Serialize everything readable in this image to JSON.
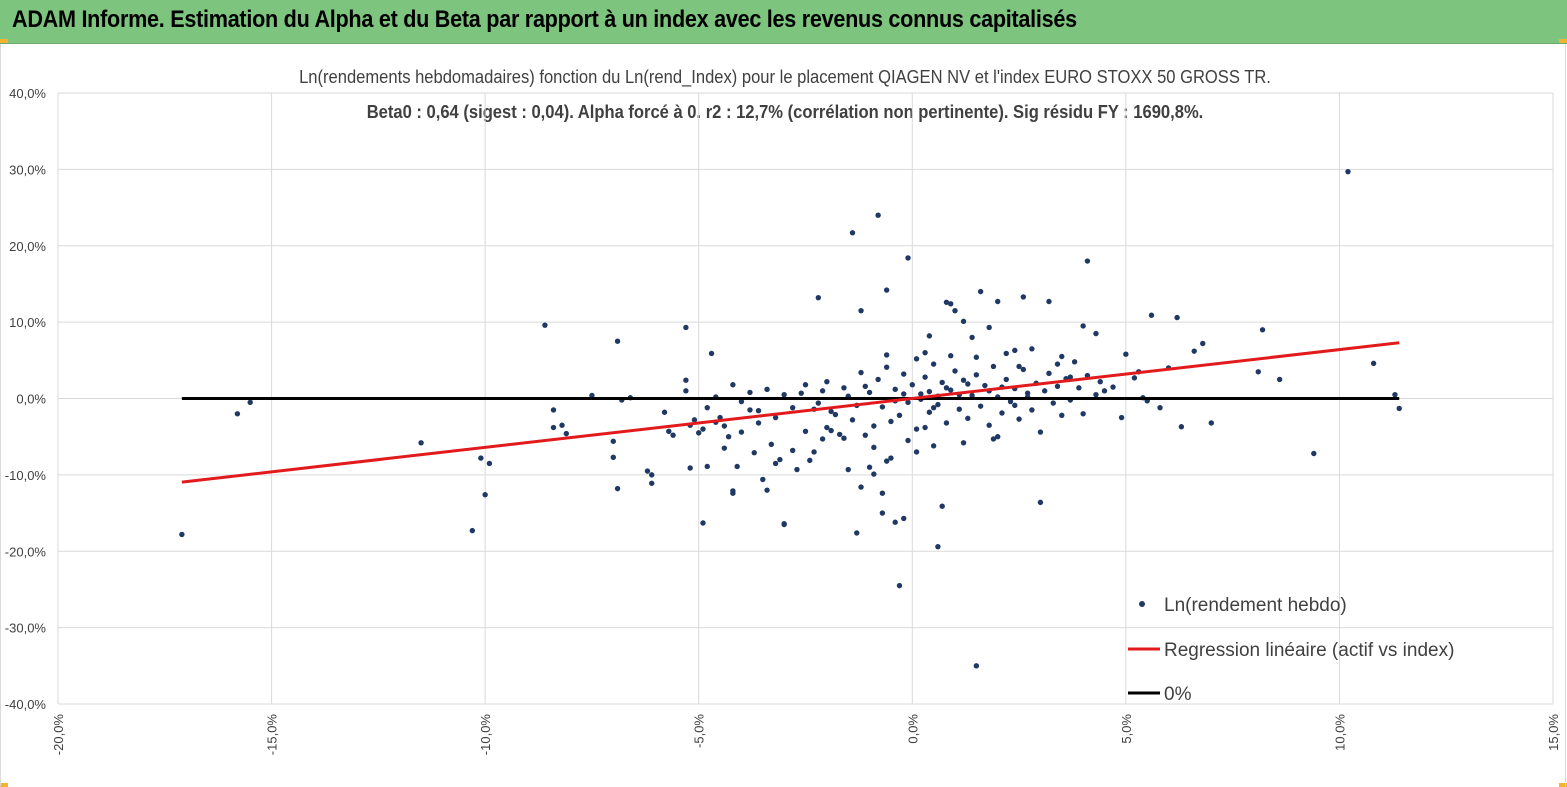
{
  "banner": {
    "title": "ADAM Informe. Estimation du Alpha et du Beta par rapport à un index avec les revenus connus capitalisés"
  },
  "colors": {
    "banner": "#7dc57e",
    "accent": "#f2b233",
    "points": "#1f3864",
    "regression": "#e31a1c",
    "zero_line": "#000000",
    "grid": "#d9d9d9"
  },
  "chart_data": {
    "type": "scatter",
    "title": "Ln(rendements hebdomadaires) fonction du Ln(rend_Index) pour le placement QIAGEN NV et l'index EURO STOXX 50 GROSS TR.",
    "subtitle": "Beta0 : 0,64 (sigest : 0,04).  Alpha forcé à 0. r2 : 12,7% (corrélation non pertinente). Sig résidu FY : 1690,8%.",
    "xlim": [
      -0.2,
      0.15
    ],
    "ylim": [
      -0.4,
      0.4
    ],
    "x_ticks": [
      "-20,0%",
      "-15,0%",
      "-10,0%",
      "-5,0%",
      "0,0%",
      "5,0%",
      "10,0%",
      "15,0%"
    ],
    "y_ticks": [
      "40,0%",
      "30,0%",
      "20,0%",
      "10,0%",
      "0,0%",
      "-10,0%",
      "-20,0%",
      "-30,0%",
      "-40,0%"
    ],
    "grid": true,
    "legend_position": "bottom-right",
    "series": [
      {
        "name": "Ln(rendement hebdo)",
        "kind": "scatter",
        "points": [
          [
            -0.171,
            -0.178
          ],
          [
            -0.158,
            -0.02
          ],
          [
            -0.155,
            -0.005
          ],
          [
            -0.115,
            -0.058
          ],
          [
            -0.103,
            -0.173
          ],
          [
            -0.101,
            -0.078
          ],
          [
            -0.1,
            -0.126
          ],
          [
            -0.099,
            -0.085
          ],
          [
            -0.086,
            0.096
          ],
          [
            -0.084,
            -0.015
          ],
          [
            -0.084,
            -0.038
          ],
          [
            -0.082,
            -0.035
          ],
          [
            -0.081,
            -0.046
          ],
          [
            -0.075,
            0.004
          ],
          [
            -0.07,
            -0.077
          ],
          [
            -0.07,
            -0.056
          ],
          [
            -0.069,
            0.075
          ],
          [
            -0.069,
            -0.118
          ],
          [
            -0.068,
            -0.002
          ],
          [
            -0.066,
            0.001
          ],
          [
            -0.062,
            -0.095
          ],
          [
            -0.061,
            -0.1
          ],
          [
            -0.061,
            -0.111
          ],
          [
            -0.058,
            -0.018
          ],
          [
            -0.057,
            -0.043
          ],
          [
            -0.056,
            -0.048
          ],
          [
            -0.053,
            0.024
          ],
          [
            -0.053,
            0.01
          ],
          [
            -0.053,
            0.093
          ],
          [
            -0.052,
            -0.035
          ],
          [
            -0.052,
            -0.091
          ],
          [
            -0.051,
            -0.028
          ],
          [
            -0.05,
            -0.045
          ],
          [
            -0.049,
            -0.04
          ],
          [
            -0.049,
            -0.163
          ],
          [
            -0.048,
            -0.089
          ],
          [
            -0.047,
            0.059
          ],
          [
            -0.046,
            -0.031
          ],
          [
            -0.045,
            -0.025
          ],
          [
            -0.044,
            -0.065
          ],
          [
            -0.043,
            -0.05
          ],
          [
            -0.042,
            -0.121
          ],
          [
            -0.042,
            -0.124
          ],
          [
            -0.041,
            -0.089
          ],
          [
            -0.04,
            -0.044
          ],
          [
            -0.038,
            -0.015
          ],
          [
            -0.037,
            -0.071
          ],
          [
            -0.036,
            -0.032
          ],
          [
            -0.035,
            -0.106
          ],
          [
            -0.034,
            -0.12
          ],
          [
            -0.033,
            -0.06
          ],
          [
            -0.032,
            -0.085
          ],
          [
            -0.031,
            -0.08
          ],
          [
            -0.03,
            -0.164
          ],
          [
            -0.03,
            -0.165
          ],
          [
            -0.028,
            -0.068
          ],
          [
            -0.027,
            -0.093
          ],
          [
            -0.025,
            -0.043
          ],
          [
            -0.024,
            -0.081
          ],
          [
            -0.023,
            -0.07
          ],
          [
            -0.022,
            0.132
          ],
          [
            -0.021,
            -0.053
          ],
          [
            -0.02,
            -0.038
          ],
          [
            -0.019,
            -0.042
          ],
          [
            -0.017,
            -0.047
          ],
          [
            -0.016,
            -0.052
          ],
          [
            -0.015,
            -0.093
          ],
          [
            -0.014,
            0.217
          ],
          [
            -0.013,
            -0.176
          ],
          [
            -0.012,
            -0.116
          ],
          [
            -0.012,
            0.115
          ],
          [
            -0.011,
            -0.048
          ],
          [
            -0.01,
            -0.09
          ],
          [
            -0.009,
            -0.099
          ],
          [
            -0.008,
            0.24
          ],
          [
            -0.007,
            -0.15
          ],
          [
            -0.007,
            -0.124
          ],
          [
            -0.006,
            0.142
          ],
          [
            -0.006,
            -0.082
          ],
          [
            -0.005,
            -0.078
          ],
          [
            -0.004,
            -0.162
          ],
          [
            -0.003,
            -0.245
          ],
          [
            -0.002,
            -0.157
          ],
          [
            -0.001,
            0.184
          ],
          [
            0.001,
            -0.07
          ],
          [
            0.003,
            -0.038
          ],
          [
            0.004,
            0.082
          ],
          [
            0.006,
            -0.194
          ],
          [
            0.007,
            -0.141
          ],
          [
            0.008,
            0.126
          ],
          [
            0.009,
            0.124
          ],
          [
            0.01,
            0.115
          ],
          [
            0.012,
            0.101
          ],
          [
            0.014,
            0.08
          ],
          [
            0.015,
            -0.35
          ],
          [
            0.016,
            0.14
          ],
          [
            0.018,
            0.093
          ],
          [
            0.019,
            -0.053
          ],
          [
            0.02,
            0.127
          ],
          [
            0.022,
            0.059
          ],
          [
            0.024,
            0.063
          ],
          [
            0.025,
            0.042
          ],
          [
            0.026,
            0.133
          ],
          [
            0.028,
            0.065
          ],
          [
            0.03,
            -0.136
          ],
          [
            0.032,
            0.127
          ],
          [
            0.034,
            0.045
          ],
          [
            0.035,
            0.055
          ],
          [
            0.037,
            0.028
          ],
          [
            0.04,
            0.095
          ],
          [
            0.041,
            0.18
          ],
          [
            0.043,
            0.085
          ],
          [
            0.045,
            0.01
          ],
          [
            0.047,
            0.015
          ],
          [
            0.049,
            -0.025
          ],
          [
            0.05,
            0.058
          ],
          [
            0.052,
            0.027
          ],
          [
            0.053,
            0.035
          ],
          [
            0.054,
            0.001
          ],
          [
            0.055,
            -0.003
          ],
          [
            0.056,
            0.109
          ],
          [
            0.058,
            -0.012
          ],
          [
            0.06,
            0.04
          ],
          [
            0.062,
            0.106
          ],
          [
            0.063,
            -0.037
          ],
          [
            0.066,
            0.062
          ],
          [
            0.068,
            0.072
          ],
          [
            0.07,
            -0.032
          ],
          [
            0.081,
            0.035
          ],
          [
            0.082,
            0.09
          ],
          [
            0.086,
            0.025
          ],
          [
            0.094,
            -0.072
          ],
          [
            0.102,
            0.297
          ],
          [
            0.108,
            0.046
          ],
          [
            0.113,
            0.005
          ],
          [
            0.114,
            -0.013
          ],
          [
            -0.028,
            -0.012
          ],
          [
            -0.025,
            0.018
          ],
          [
            -0.022,
            -0.006
          ],
          [
            -0.02,
            0.022
          ],
          [
            -0.018,
            -0.021
          ],
          [
            -0.016,
            0.014
          ],
          [
            -0.014,
            -0.028
          ],
          [
            -0.012,
            0.034
          ],
          [
            -0.01,
            0.008
          ],
          [
            -0.009,
            -0.036
          ],
          [
            -0.008,
            0.025
          ],
          [
            -0.007,
            -0.011
          ],
          [
            -0.006,
            0.041
          ],
          [
            -0.005,
            -0.03
          ],
          [
            -0.004,
            0.012
          ],
          [
            -0.003,
            -0.022
          ],
          [
            -0.002,
            0.032
          ],
          [
            -0.001,
            -0.005
          ],
          [
            0.0,
            0.018
          ],
          [
            0.001,
            -0.04
          ],
          [
            0.002,
            0.006
          ],
          [
            0.003,
            0.028
          ],
          [
            0.004,
            -0.018
          ],
          [
            0.005,
            0.045
          ],
          [
            0.006,
            -0.008
          ],
          [
            0.007,
            0.021
          ],
          [
            0.008,
            -0.032
          ],
          [
            0.009,
            0.011
          ],
          [
            0.01,
            0.036
          ],
          [
            0.011,
            -0.014
          ],
          [
            0.012,
            0.024
          ],
          [
            0.013,
            -0.026
          ],
          [
            0.014,
            0.004
          ],
          [
            0.015,
            0.031
          ],
          [
            0.016,
            -0.01
          ],
          [
            0.017,
            0.017
          ],
          [
            0.018,
            -0.035
          ],
          [
            0.019,
            0.042
          ],
          [
            0.02,
            0.002
          ],
          [
            0.021,
            -0.019
          ],
          [
            0.022,
            0.025
          ],
          [
            0.023,
            -0.004
          ],
          [
            0.024,
            0.013
          ],
          [
            0.025,
            -0.027
          ],
          [
            0.026,
            0.038
          ],
          [
            0.027,
            0.007
          ],
          [
            0.028,
            -0.015
          ],
          [
            0.029,
            0.02
          ],
          [
            0.03,
            -0.044
          ],
          [
            0.031,
            0.01
          ],
          [
            0.032,
            0.033
          ],
          [
            0.033,
            -0.006
          ],
          [
            0.034,
            0.016
          ],
          [
            0.035,
            -0.022
          ],
          [
            0.036,
            0.026
          ],
          [
            0.037,
            -0.002
          ],
          [
            0.038,
            0.048
          ],
          [
            0.039,
            0.014
          ],
          [
            0.04,
            -0.02
          ],
          [
            0.041,
            0.03
          ],
          [
            0.043,
            0.005
          ],
          [
            0.044,
            0.022
          ],
          [
            -0.03,
            0.005
          ],
          [
            -0.032,
            -0.025
          ],
          [
            -0.034,
            0.012
          ],
          [
            -0.036,
            -0.016
          ],
          [
            -0.038,
            0.008
          ],
          [
            -0.04,
            -0.004
          ],
          [
            -0.042,
            0.018
          ],
          [
            -0.044,
            -0.036
          ],
          [
            -0.046,
            0.002
          ],
          [
            -0.048,
            -0.012
          ],
          [
            0.002,
            -0.001
          ],
          [
            0.004,
            0.009
          ],
          [
            0.006,
            0.003
          ],
          [
            0.008,
            0.014
          ],
          [
            -0.002,
            0.006
          ],
          [
            -0.004,
            -0.003
          ],
          [
            0.005,
            -0.012
          ],
          [
            0.011,
            0.005
          ],
          [
            -0.011,
            0.016
          ],
          [
            -0.013,
            -0.009
          ],
          [
            0.013,
            0.019
          ],
          [
            -0.015,
            0.003
          ],
          [
            0.018,
            0.01
          ],
          [
            -0.019,
            -0.017
          ],
          [
            0.021,
            0.015
          ],
          [
            -0.021,
            0.01
          ],
          [
            0.024,
            -0.009
          ],
          [
            -0.023,
            -0.014
          ],
          [
            0.027,
            0.002
          ],
          [
            -0.026,
            0.007
          ],
          [
            0.001,
            0.052
          ],
          [
            -0.001,
            -0.055
          ],
          [
            0.003,
            0.06
          ],
          [
            0.005,
            -0.062
          ],
          [
            0.009,
            0.056
          ],
          [
            0.012,
            -0.058
          ],
          [
            -0.006,
            0.057
          ],
          [
            -0.009,
            -0.064
          ],
          [
            0.015,
            0.054
          ],
          [
            0.02,
            -0.05
          ]
        ]
      },
      {
        "name": "Regression linéaire (actif vs index)",
        "kind": "line",
        "slope": 0.64,
        "x_range": [
          -0.171,
          0.114
        ]
      },
      {
        "name": "0%",
        "kind": "line",
        "y": 0,
        "x_range": [
          -0.171,
          0.114
        ]
      }
    ]
  }
}
